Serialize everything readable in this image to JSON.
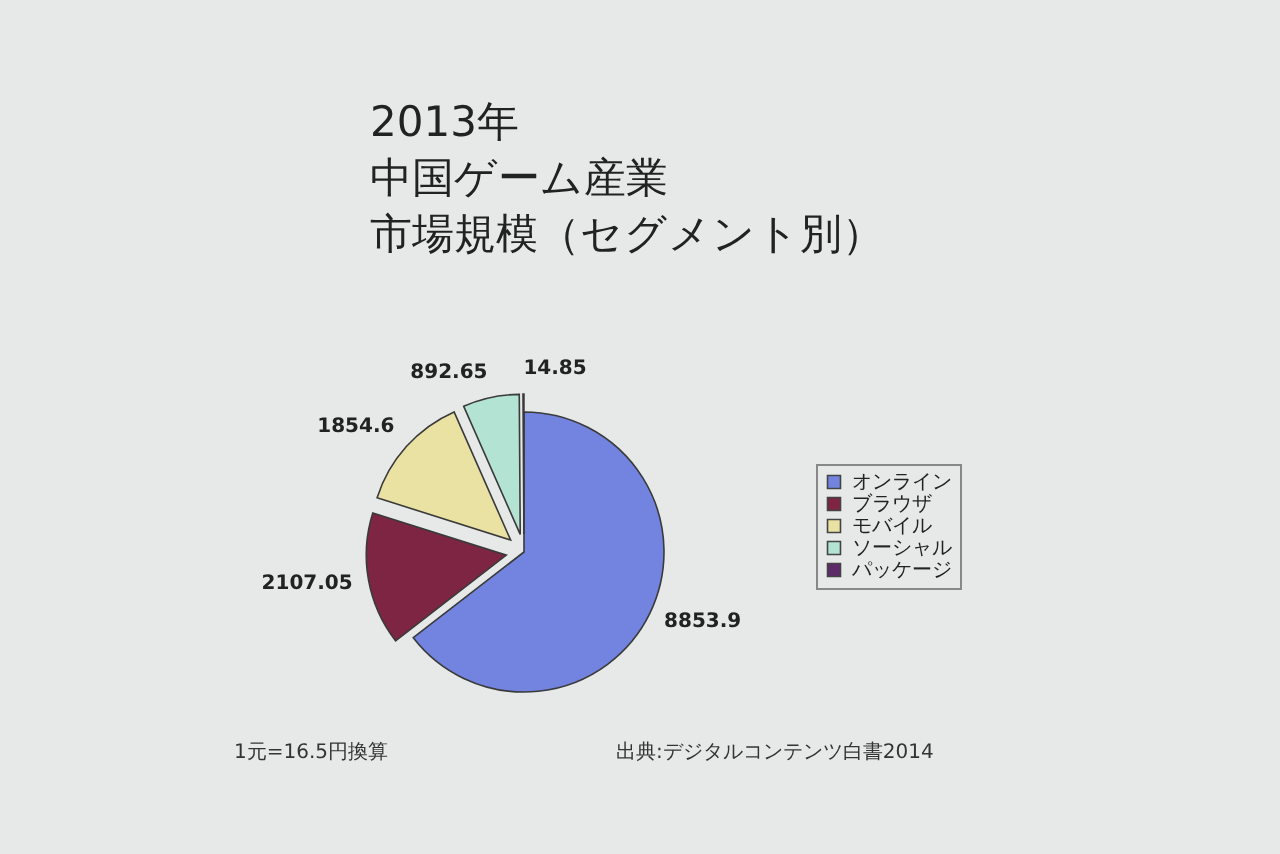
{
  "chart_data": {
    "type": "pie",
    "title": "2013年中国ゲーム産業市場規模（セグメント別）",
    "categories": [
      "オンライン",
      "ブラウザ",
      "モバイル",
      "ソーシャル",
      "パッケージ"
    ],
    "values": [
      8853.9,
      2107.05,
      1854.6,
      892.65,
      14.85
    ],
    "colors": [
      "#7384e0",
      "#7d2543",
      "#e9e2a2",
      "#b3e3d3",
      "#5e2a6a"
    ],
    "data_labels": true,
    "legend": "right",
    "annotations": [
      "1元=16.5円換算",
      "出典:デジタルコンテンツ白書2014"
    ]
  }
}
